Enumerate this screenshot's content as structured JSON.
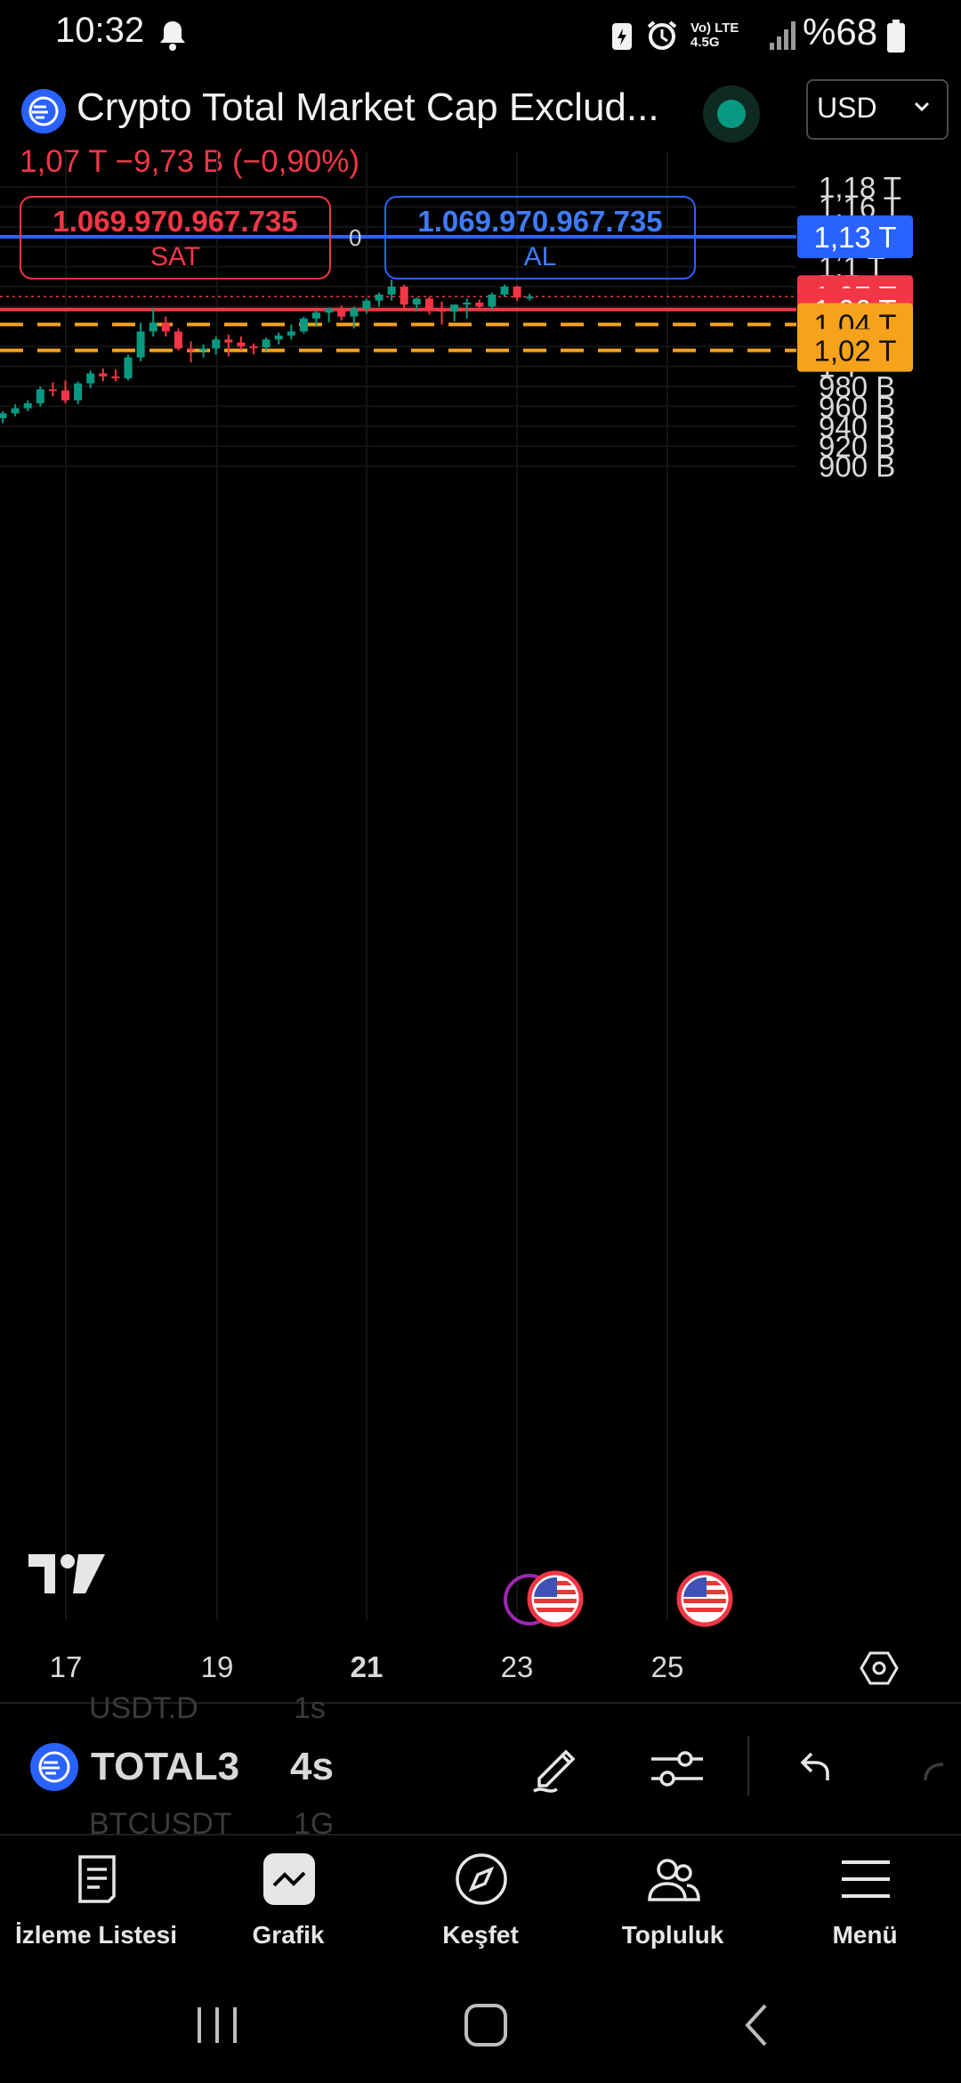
{
  "status_bar": {
    "time": "10:32",
    "network": "Vo) LTE 4.5G",
    "battery": "%68"
  },
  "header": {
    "title": "Crypto Total Market Cap Exclud...",
    "currency": "USD",
    "price_summary": "1,07 T  −9,73 B (−0,90%)"
  },
  "trade": {
    "sell_price": "1.069.970.967.735",
    "sell_label": "SAT",
    "spread": "0",
    "buy_price": "1.069.970.967.735",
    "buy_label": "AL"
  },
  "chart_data": {
    "type": "candlestick",
    "y_ticks": [
      "1,18 T",
      "1,16 T",
      "1,14 T",
      "1,12 T",
      "1,1 T",
      "1,08 T",
      "1,06 T",
      "1,02 T",
      "1 T",
      "980 B",
      "960 B",
      "940 B",
      "920 B",
      "900 B"
    ],
    "x_ticks": [
      "17",
      "19",
      "21",
      "23",
      "25"
    ],
    "x_tick_bold": "21",
    "price_labels": [
      {
        "value": 1.13,
        "text": "1,13 T",
        "color": "#2962ff",
        "line": "solid"
      },
      {
        "value": 1.07,
        "text": "1,07 T",
        "color": "#f23645",
        "line": "dotted"
      },
      {
        "value": 1.057,
        "text": "1,06 T",
        "color": "#f23645",
        "line": "solid"
      },
      {
        "value": 1.042,
        "text": "1,04 T",
        "color": "#f7a21b",
        "line": "dashed"
      },
      {
        "value": 1.016,
        "text": "1,02 T",
        "color": "#f7a21b",
        "line": "dashed"
      }
    ],
    "up_color": "#089981",
    "down_color": "#f23645",
    "ylim": [
      0.9,
      1.18
    ],
    "candles": [
      {
        "o": 0.948,
        "h": 0.955,
        "l": 0.943,
        "c": 0.953
      },
      {
        "o": 0.953,
        "h": 0.962,
        "l": 0.95,
        "c": 0.958
      },
      {
        "o": 0.958,
        "h": 0.966,
        "l": 0.955,
        "c": 0.963
      },
      {
        "o": 0.963,
        "h": 0.98,
        "l": 0.96,
        "c": 0.977
      },
      {
        "o": 0.977,
        "h": 0.984,
        "l": 0.97,
        "c": 0.976
      },
      {
        "o": 0.976,
        "h": 0.986,
        "l": 0.963,
        "c": 0.966
      },
      {
        "o": 0.966,
        "h": 0.985,
        "l": 0.962,
        "c": 0.983
      },
      {
        "o": 0.983,
        "h": 0.996,
        "l": 0.978,
        "c": 0.993
      },
      {
        "o": 0.993,
        "h": 0.998,
        "l": 0.985,
        "c": 0.99
      },
      {
        "o": 0.99,
        "h": 0.997,
        "l": 0.985,
        "c": 0.988
      },
      {
        "o": 0.988,
        "h": 1.012,
        "l": 0.986,
        "c": 1.009
      },
      {
        "o": 1.009,
        "h": 1.044,
        "l": 1.005,
        "c": 1.035
      },
      {
        "o": 1.035,
        "h": 1.058,
        "l": 1.03,
        "c": 1.044
      },
      {
        "o": 1.044,
        "h": 1.05,
        "l": 1.03,
        "c": 1.035
      },
      {
        "o": 1.035,
        "h": 1.038,
        "l": 1.016,
        "c": 1.018
      },
      {
        "o": 1.018,
        "h": 1.025,
        "l": 1.004,
        "c": 1.016
      },
      {
        "o": 1.016,
        "h": 1.022,
        "l": 1.009,
        "c": 1.018
      },
      {
        "o": 1.018,
        "h": 1.03,
        "l": 1.012,
        "c": 1.027
      },
      {
        "o": 1.027,
        "h": 1.032,
        "l": 1.01,
        "c": 1.024
      },
      {
        "o": 1.024,
        "h": 1.03,
        "l": 1.016,
        "c": 1.02
      },
      {
        "o": 1.02,
        "h": 1.023,
        "l": 1.012,
        "c": 1.019
      },
      {
        "o": 1.019,
        "h": 1.029,
        "l": 1.016,
        "c": 1.027
      },
      {
        "o": 1.027,
        "h": 1.034,
        "l": 1.022,
        "c": 1.031
      },
      {
        "o": 1.031,
        "h": 1.042,
        "l": 1.027,
        "c": 1.035
      },
      {
        "o": 1.035,
        "h": 1.05,
        "l": 1.033,
        "c": 1.048
      },
      {
        "o": 1.048,
        "h": 1.056,
        "l": 1.04,
        "c": 1.054
      },
      {
        "o": 1.054,
        "h": 1.059,
        "l": 1.044,
        "c": 1.058
      },
      {
        "o": 1.058,
        "h": 1.061,
        "l": 1.046,
        "c": 1.05
      },
      {
        "o": 1.05,
        "h": 1.06,
        "l": 1.038,
        "c": 1.058
      },
      {
        "o": 1.058,
        "h": 1.068,
        "l": 1.053,
        "c": 1.066
      },
      {
        "o": 1.066,
        "h": 1.074,
        "l": 1.06,
        "c": 1.072
      },
      {
        "o": 1.072,
        "h": 1.087,
        "l": 1.066,
        "c": 1.08
      },
      {
        "o": 1.08,
        "h": 1.082,
        "l": 1.058,
        "c": 1.062
      },
      {
        "o": 1.062,
        "h": 1.069,
        "l": 1.056,
        "c": 1.068
      },
      {
        "o": 1.068,
        "h": 1.07,
        "l": 1.052,
        "c": 1.058
      },
      {
        "o": 1.058,
        "h": 1.065,
        "l": 1.042,
        "c": 1.055
      },
      {
        "o": 1.055,
        "h": 1.062,
        "l": 1.045,
        "c": 1.062
      },
      {
        "o": 1.062,
        "h": 1.068,
        "l": 1.048,
        "c": 1.064
      },
      {
        "o": 1.064,
        "h": 1.067,
        "l": 1.058,
        "c": 1.06
      },
      {
        "o": 1.06,
        "h": 1.074,
        "l": 1.057,
        "c": 1.072
      },
      {
        "o": 1.072,
        "h": 1.082,
        "l": 1.07,
        "c": 1.08
      },
      {
        "o": 1.08,
        "h": 1.081,
        "l": 1.066,
        "c": 1.069
      },
      {
        "o": 1.069,
        "h": 1.073,
        "l": 1.066,
        "c": 1.07
      }
    ]
  },
  "tab_strip": {
    "symbol": "TOTAL3",
    "interval": "4s",
    "ghost_above_symbol": "USDT.D",
    "ghost_above_interval": "1s",
    "ghost_below_symbol": "BTCUSDT",
    "ghost_below_interval": "1G"
  },
  "nav": [
    {
      "label": "İzleme Listesi",
      "icon": "watchlist-icon"
    },
    {
      "label": "Grafik",
      "icon": "chart-icon"
    },
    {
      "label": "Keşfet",
      "icon": "compass-icon"
    },
    {
      "label": "Topluluk",
      "icon": "community-icon"
    },
    {
      "label": "Menü",
      "icon": "hamburger-menu-icon"
    }
  ]
}
